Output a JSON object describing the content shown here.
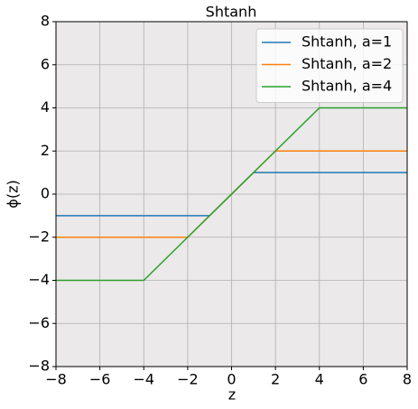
{
  "chart_data": {
    "type": "line",
    "title": "Shtanh",
    "xlabel": "z",
    "ylabel": "ϕ(z)",
    "x": [
      -8,
      -4,
      -2,
      -1,
      1,
      2,
      4,
      8
    ],
    "series": [
      {
        "name": "Shtanh, a=1",
        "color": "#1f77b4",
        "values": [
          -1,
          -1,
          -1,
          -1,
          1,
          1,
          1,
          1
        ]
      },
      {
        "name": "Shtanh, a=2",
        "color": "#ff7f0e",
        "values": [
          -2,
          -2,
          -2,
          -1,
          1,
          2,
          2,
          2
        ]
      },
      {
        "name": "Shtanh, a=4",
        "color": "#2ca02c",
        "values": [
          -4,
          -4,
          -2,
          -1,
          1,
          2,
          4,
          4
        ]
      }
    ],
    "xlim": [
      -8,
      8
    ],
    "ylim": [
      -8,
      8
    ],
    "xticks": [
      {
        "value": -8,
        "label": "−8"
      },
      {
        "value": -6,
        "label": "−6"
      },
      {
        "value": -4,
        "label": "−4"
      },
      {
        "value": -2,
        "label": "−2"
      },
      0,
      2,
      4,
      6,
      8
    ],
    "yticks": [
      {
        "value": -8,
        "label": "−8"
      },
      {
        "value": -6,
        "label": "−6"
      },
      {
        "value": -4,
        "label": "−4"
      },
      {
        "value": -2,
        "label": "−2"
      },
      0,
      2,
      4,
      6,
      8
    ],
    "grid": true,
    "legend": "upper right",
    "background": "#ebe9e9"
  }
}
